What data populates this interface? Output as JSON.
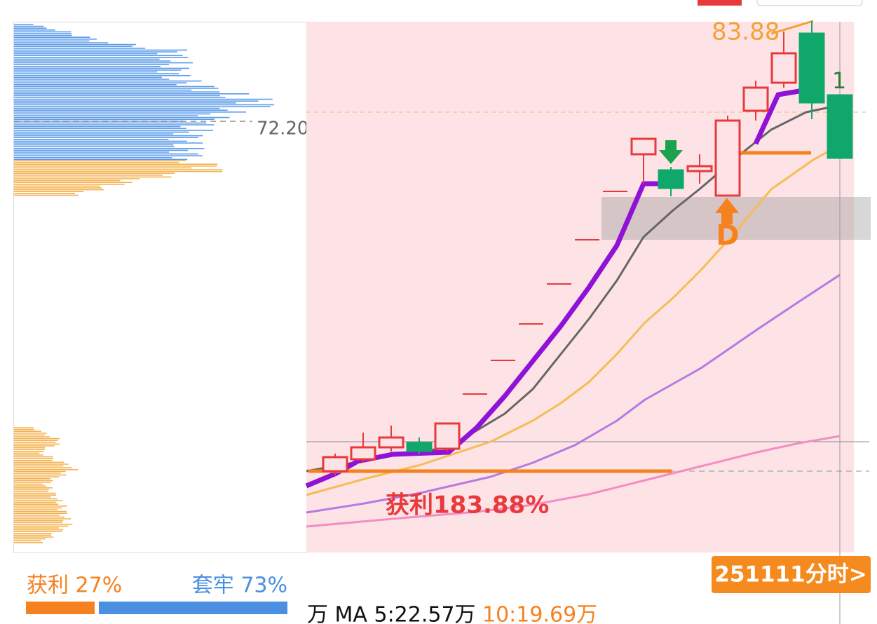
{
  "price_labels": {
    "high": "83.88",
    "chip_avg": "72.20",
    "marker": "1",
    "signal": "D"
  },
  "profit_annotation": "获利183.88%",
  "chip_summary": {
    "profit": "获利 27%",
    "trapped": "套牢 73%"
  },
  "button": "251111分时>",
  "volume_bar": {
    "ma5": "万 MA 5:22.57万",
    "ma10": "10:19.69万"
  }
}
